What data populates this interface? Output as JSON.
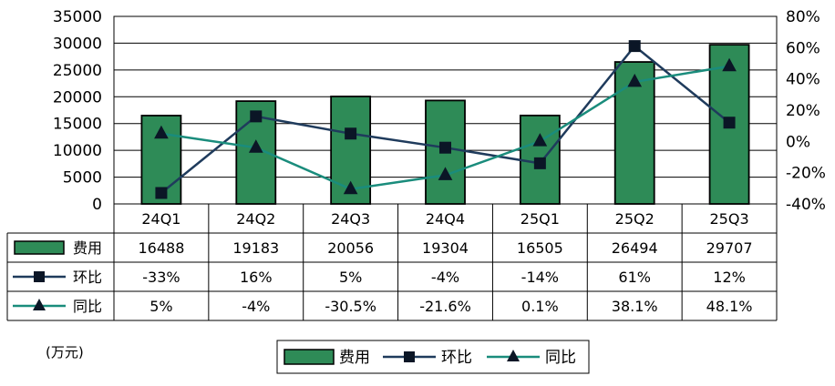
{
  "chart_data": {
    "type": "bar",
    "categories": [
      "24Q1",
      "24Q2",
      "24Q3",
      "24Q4",
      "25Q1",
      "25Q2",
      "25Q3"
    ],
    "series": [
      {
        "name": "费用",
        "type": "bar",
        "axis": "left",
        "values": [
          16488,
          19183,
          20056,
          19304,
          16505,
          26494,
          29707
        ],
        "labels": [
          "16488",
          "19183",
          "20056",
          "19304",
          "16505",
          "26494",
          "29707"
        ],
        "color": "#2e8b57"
      },
      {
        "name": "环比",
        "type": "line",
        "axis": "right",
        "marker": "square",
        "values": [
          -33,
          16,
          5,
          -4,
          -14,
          61,
          12
        ],
        "labels": [
          "-33%",
          "16%",
          "5%",
          "-4%",
          "-14%",
          "61%",
          "12%"
        ],
        "color": "#1f3b5c"
      },
      {
        "name": "同比",
        "type": "line",
        "axis": "right",
        "marker": "triangle",
        "values": [
          5,
          -4,
          -30.5,
          -21.6,
          0.1,
          38.1,
          48.1
        ],
        "labels": [
          "5%",
          "-4%",
          "-30.5%",
          "-21.6%",
          "0.1%",
          "38.1%",
          "48.1%"
        ],
        "color": "#1a8c7c"
      }
    ],
    "y_left": {
      "min": 0,
      "max": 35000,
      "ticks": [
        "0",
        "5000",
        "10000",
        "15000",
        "20000",
        "25000",
        "30000",
        "35000"
      ]
    },
    "y_right": {
      "min": -40,
      "max": 80,
      "ticks": [
        "-40%",
        "-20%",
        "0%",
        "20%",
        "40%",
        "60%",
        "80%"
      ]
    },
    "unit_label": "(万元)",
    "grid": true,
    "legend_position": "bottom"
  }
}
